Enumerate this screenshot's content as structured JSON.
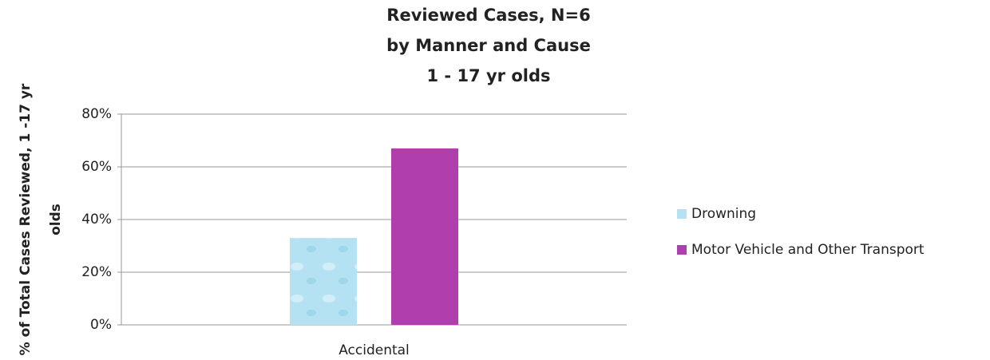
{
  "chart_data": {
    "type": "bar",
    "title": [
      "Reviewed Cases, N=6",
      "by Manner and Cause",
      "1 - 17 yr olds"
    ],
    "y_label": [
      "% of Total Cases Reviewed, 1 -17 yr",
      "olds"
    ],
    "categories": [
      "Accidental"
    ],
    "series": [
      {
        "name": "Drowning",
        "color": "#b4e2f2",
        "values": [
          33
        ]
      },
      {
        "name": "Motor Vehicle and Other Transport",
        "color": "#b03ead",
        "values": [
          67
        ]
      }
    ],
    "ylim": [
      0,
      80
    ],
    "yticks": [
      {
        "value": 0,
        "label": "0%"
      },
      {
        "value": 20,
        "label": "20%"
      },
      {
        "value": 40,
        "label": "40%"
      },
      {
        "value": 60,
        "label": "60%"
      },
      {
        "value": 80,
        "label": "80%"
      }
    ],
    "grid": true,
    "legend": "right"
  }
}
